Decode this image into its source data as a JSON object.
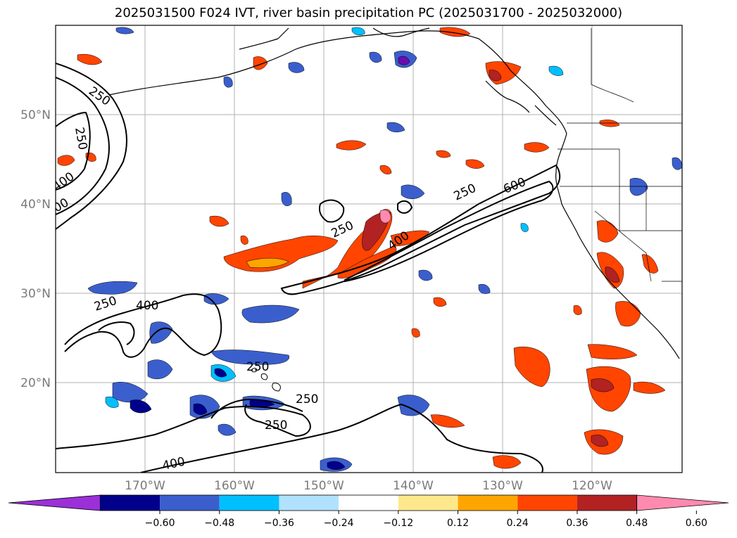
{
  "title": "2025031500 F024 IVT, river basin precipitation PC (2025031700 - 2025032000)",
  "longitude_labels": [
    "170°W",
    "160°W",
    "150°W",
    "140°W",
    "130°W",
    "120°W"
  ],
  "latitude_labels": [
    "50°N",
    "40°N",
    "30°N",
    "20°N"
  ],
  "ivt_contour_labels": [
    "250",
    "250",
    "400",
    "00",
    "250",
    "600",
    "250",
    "400",
    "250",
    "400",
    "250",
    "250",
    "250",
    "400"
  ],
  "colorbar": {
    "ticks": [
      "−0.60",
      "−0.48",
      "−0.36",
      "−0.24",
      "−0.12",
      "0.12",
      "0.24",
      "0.36",
      "0.48",
      "0.60"
    ],
    "colors": [
      "#9b30d9",
      "#00008b",
      "#3a5fcd",
      "#00bfff",
      "#b0e2ff",
      "#ffffff",
      "#ffe88c",
      "#ffa500",
      "#ff4500",
      "#b22222",
      "#ff8ab0"
    ]
  },
  "colors": {
    "contour": "#000000",
    "coastline": "#000000",
    "gridline": "#b0b0b0"
  }
}
